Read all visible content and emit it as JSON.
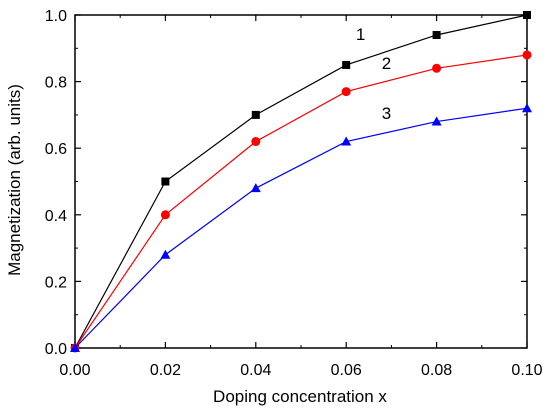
{
  "chart_data": {
    "type": "line",
    "xlabel": "Doping concentration x",
    "ylabel": "Magnetization (arb. units)",
    "xlim": [
      0.0,
      0.1
    ],
    "ylim": [
      0.0,
      1.0
    ],
    "xticks": [
      "0.00",
      "0.02",
      "0.04",
      "0.06",
      "0.08",
      "0.10"
    ],
    "yticks": [
      "0.0",
      "0.2",
      "0.4",
      "0.6",
      "0.8",
      "1.0"
    ],
    "grid": false,
    "x": [
      0.0,
      0.02,
      0.04,
      0.06,
      0.08,
      0.1
    ],
    "series": [
      {
        "name": "1",
        "color": "#000000",
        "marker": "square",
        "values": [
          0.0,
          0.5,
          0.7,
          0.85,
          0.94,
          1.0
        ]
      },
      {
        "name": "2",
        "color": "#ff0000",
        "marker": "circle",
        "values": [
          0.0,
          0.4,
          0.62,
          0.77,
          0.84,
          0.88
        ]
      },
      {
        "name": "3",
        "color": "#0000ff",
        "marker": "triangle",
        "values": [
          0.0,
          0.28,
          0.48,
          0.62,
          0.68,
          0.72
        ]
      }
    ]
  }
}
